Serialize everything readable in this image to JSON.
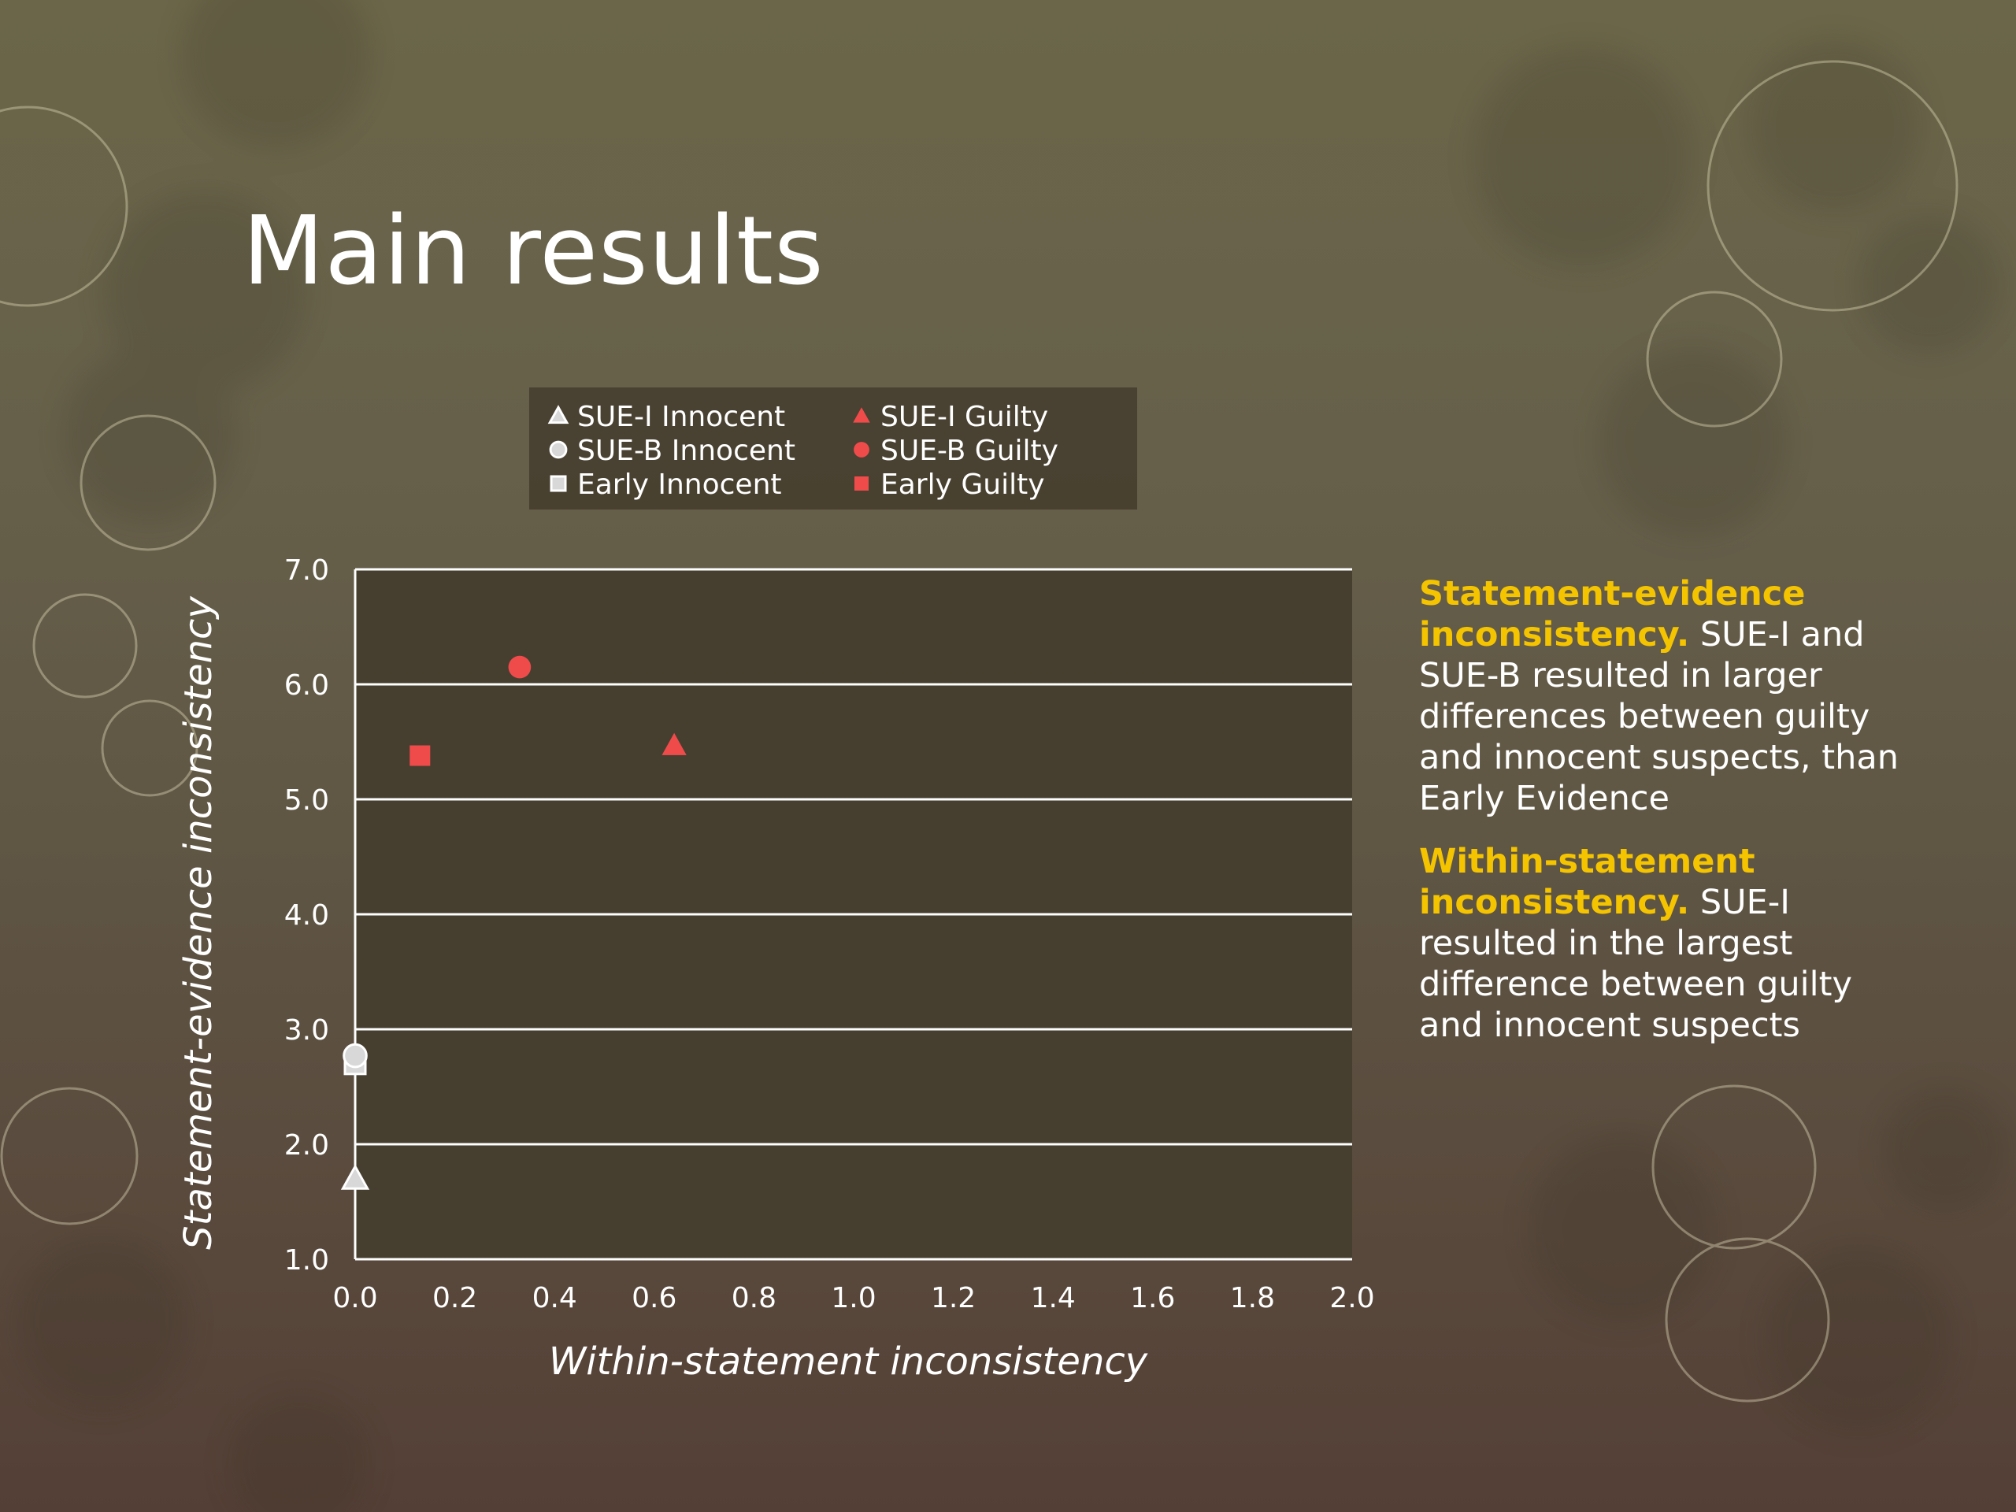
{
  "slide": {
    "title": "Main results",
    "paragraphs": [
      {
        "heading": "Statement-evidence inconsistency.",
        "text": " SUE-I and SUE-B resulted in larger differences between guilty and innocent suspects, than Early Evidence"
      },
      {
        "heading": "Within-statement inconsistency.",
        "text": " SUE-I resulted in the largest difference between guilty and innocent suspects"
      }
    ]
  },
  "colors": {
    "accent": "#f5c400",
    "guilty": "#f04b4b",
    "innocent_fill": "#d8d8d8",
    "plot_bg": "#463f2f",
    "grid": "#ffffff"
  },
  "chart_data": {
    "type": "scatter",
    "xlabel": "Within-statement inconsistency",
    "ylabel": "Statement-evidence inconsistency",
    "xlim": [
      0.0,
      2.0
    ],
    "ylim": [
      1.0,
      7.0
    ],
    "x_ticks": [
      "0.0",
      "0.2",
      "0.4",
      "0.6",
      "0.8",
      "1.0",
      "1.2",
      "1.4",
      "1.6",
      "1.8",
      "2.0"
    ],
    "y_ticks": [
      "1.0",
      "2.0",
      "3.0",
      "4.0",
      "5.0",
      "6.0",
      "7.0"
    ],
    "grid": "horizontal",
    "legend_position": "top",
    "series": [
      {
        "name": "SUE-I Innocent",
        "marker": "triangle",
        "filled": false,
        "points": [
          [
            0.0,
            1.7
          ]
        ]
      },
      {
        "name": "SUE-I Guilty",
        "marker": "triangle",
        "filled": true,
        "points": [
          [
            0.64,
            5.47
          ]
        ]
      },
      {
        "name": "SUE-B Innocent",
        "marker": "circle",
        "filled": false,
        "points": [
          [
            0.0,
            2.77
          ]
        ]
      },
      {
        "name": "SUE-B Guilty",
        "marker": "circle",
        "filled": true,
        "points": [
          [
            0.33,
            6.15
          ]
        ]
      },
      {
        "name": "Early Innocent",
        "marker": "square",
        "filled": false,
        "points": [
          [
            0.0,
            2.7
          ]
        ]
      },
      {
        "name": "Early Guilty",
        "marker": "square",
        "filled": true,
        "points": [
          [
            0.13,
            5.38
          ]
        ]
      }
    ]
  }
}
